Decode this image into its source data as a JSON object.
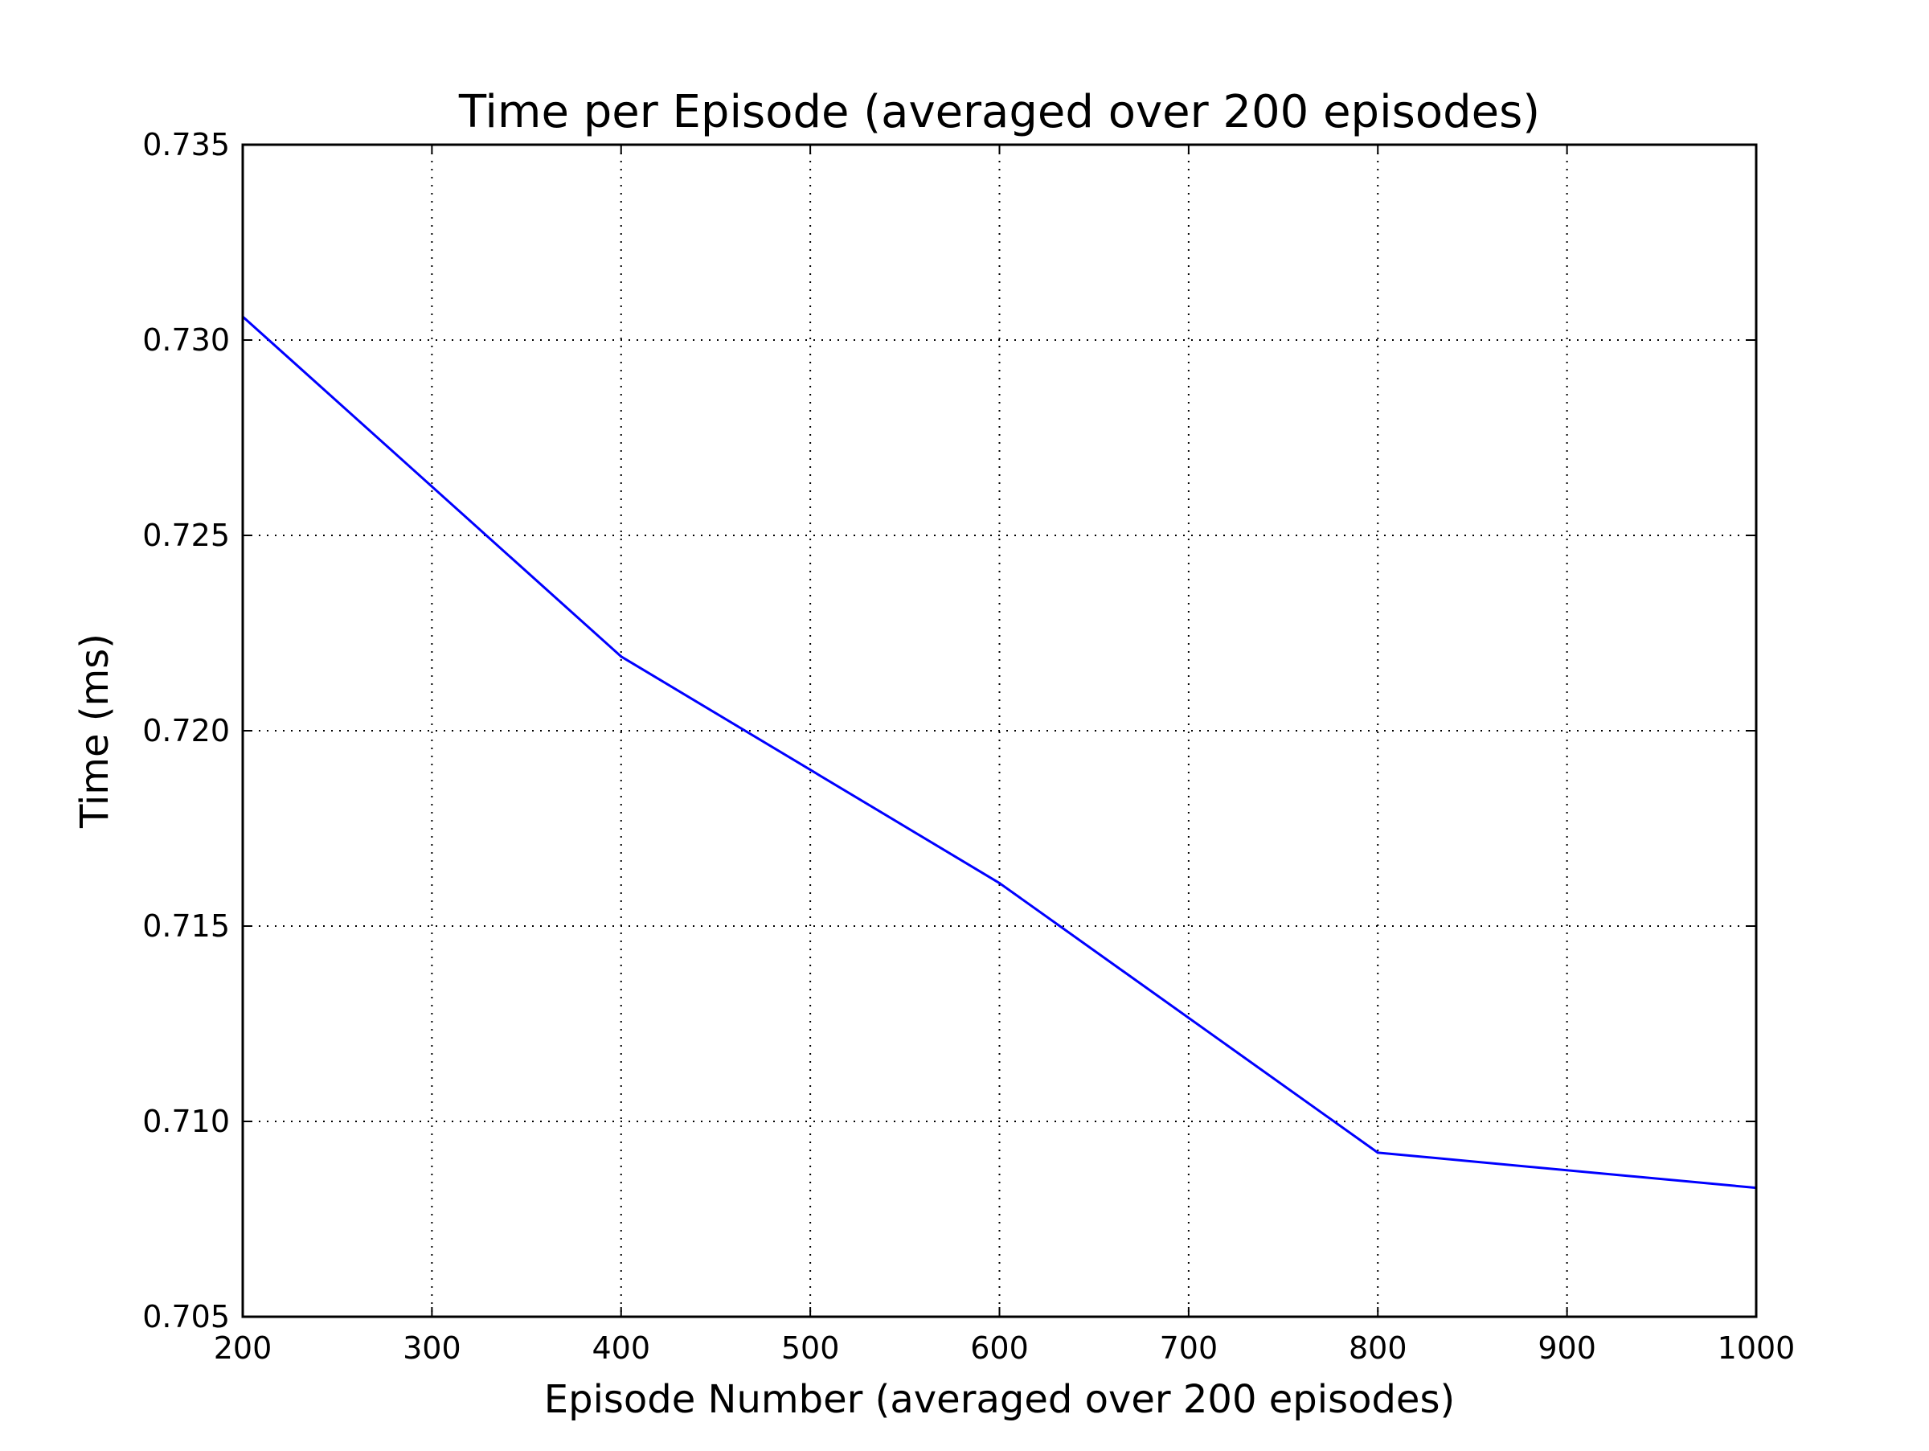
{
  "chart_data": {
    "type": "line",
    "title": "Time per Episode (averaged over 200 episodes)",
    "xlabel": "Episode Number (averaged over 200 episodes)",
    "ylabel": "Time (ms)",
    "xlim": [
      200,
      1000
    ],
    "ylim": [
      0.705,
      0.735
    ],
    "xticks": [
      200,
      300,
      400,
      500,
      600,
      700,
      800,
      900,
      1000
    ],
    "xtick_labels": [
      "200",
      "300",
      "400",
      "500",
      "600",
      "700",
      "800",
      "900",
      "1000"
    ],
    "yticks": [
      0.705,
      0.71,
      0.715,
      0.72,
      0.725,
      0.73,
      0.735
    ],
    "ytick_labels": [
      "0.705",
      "0.710",
      "0.715",
      "0.720",
      "0.725",
      "0.730",
      "0.735"
    ],
    "grid": true,
    "series": [
      {
        "x": [
          200,
          400,
          600,
          800,
          1000
        ],
        "y": [
          0.7306,
          0.7219,
          0.7161,
          0.7092,
          0.7083
        ],
        "color": "#0000ff"
      }
    ]
  }
}
